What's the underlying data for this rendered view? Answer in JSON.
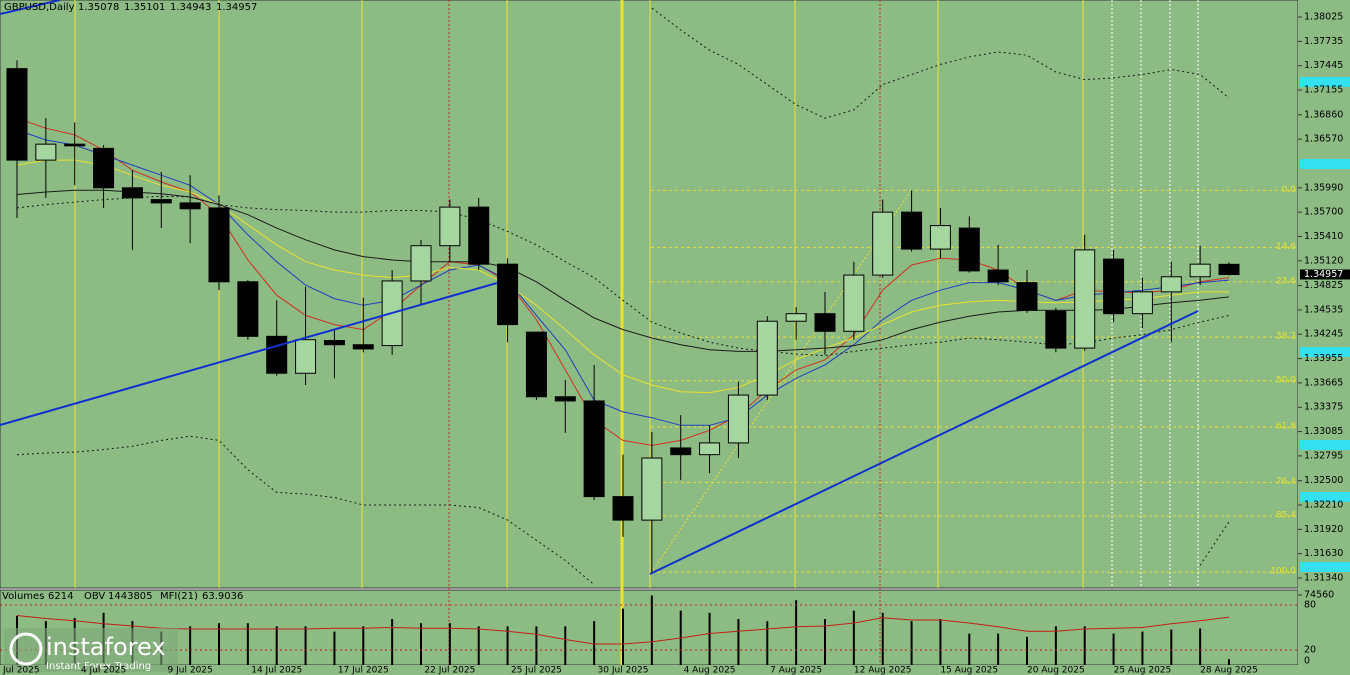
{
  "chart_data": {
    "type": "candlestick",
    "title": "GBPUSD,Daily",
    "categories": [
      "1 Jul 2025",
      null,
      null,
      "4 Jul 2025",
      null,
      null,
      "9 Jul 2025",
      null,
      null,
      "14 Jul 2025",
      null,
      null,
      "17 Jul 2025",
      null,
      null,
      "22 Jul 2025",
      null,
      null,
      "25 Jul 2025",
      null,
      null,
      "30 Jul 2025",
      null,
      null,
      "4 Aug 2025",
      null,
      null,
      "7 Aug 2025",
      null,
      null,
      "12 Aug 2025",
      null,
      null,
      "15 Aug 2025",
      null,
      null,
      "20 Aug 2025",
      null,
      null,
      "25 Aug 2025",
      null,
      null,
      "28 Aug 2025"
    ],
    "open": [
      1.3741,
      1.3632,
      1.3651,
      1.3646,
      1.3599,
      1.3585,
      1.3581,
      1.3575,
      1.3487,
      1.3422,
      1.3378,
      1.3417,
      1.3412,
      1.3411,
      1.3488,
      1.353,
      1.3576,
      1.3508,
      1.3427,
      1.335,
      1.3345,
      1.3231,
      1.3203,
      1.3289,
      1.3281,
      1.3295,
      1.3352,
      1.344,
      1.3449,
      1.3428,
      1.3495,
      1.357,
      1.3526,
      1.3551,
      1.3501,
      1.3486,
      1.3452,
      1.3408,
      1.3514,
      1.3449,
      1.3475,
      1.3493,
      1.35078
    ],
    "high": [
      1.3751,
      1.3682,
      1.3677,
      1.365,
      1.362,
      1.3618,
      1.3614,
      1.359,
      1.3489,
      1.3465,
      1.3481,
      1.343,
      1.3468,
      1.3501,
      1.3537,
      1.3585,
      1.3587,
      1.3515,
      1.3427,
      1.337,
      1.3388,
      1.3281,
      1.3308,
      1.3328,
      1.3316,
      1.3368,
      1.3446,
      1.3457,
      1.3475,
      1.3511,
      1.3585,
      1.3596,
      1.3575,
      1.3565,
      1.3531,
      1.3501,
      1.3456,
      1.3543,
      1.3525,
      1.3492,
      1.3511,
      1.353,
      1.35101
    ],
    "low": [
      1.3563,
      1.3587,
      1.3602,
      1.3575,
      1.3525,
      1.3551,
      1.3533,
      1.3477,
      1.3418,
      1.3375,
      1.3364,
      1.3372,
      1.3403,
      1.34,
      1.3459,
      1.3511,
      1.3501,
      1.3415,
      1.3346,
      1.3307,
      1.3227,
      1.3183,
      1.314,
      1.3251,
      1.3259,
      1.3277,
      1.3346,
      1.3418,
      1.34,
      1.3418,
      1.3492,
      1.3523,
      1.3515,
      1.3498,
      1.3483,
      1.345,
      1.3403,
      1.3405,
      1.3439,
      1.3432,
      1.3415,
      1.3483,
      1.34943
    ],
    "close": [
      1.3632,
      1.3651,
      1.3649,
      1.3599,
      1.3587,
      1.3581,
      1.3574,
      1.3487,
      1.3422,
      1.3378,
      1.3418,
      1.3412,
      1.3407,
      1.3488,
      1.353,
      1.3576,
      1.3508,
      1.3436,
      1.335,
      1.3345,
      1.3231,
      1.3203,
      1.3277,
      1.3281,
      1.3295,
      1.3352,
      1.344,
      1.3449,
      1.3428,
      1.3495,
      1.357,
      1.3526,
      1.3554,
      1.35,
      1.3487,
      1.3453,
      1.3408,
      1.3525,
      1.3449,
      1.3475,
      1.3493,
      1.3508,
      1.34957
    ],
    "overlays": [
      {
        "color": "#d03020",
        "dashed": false,
        "values": [
          1.3682,
          1.367,
          1.3662,
          1.3644,
          1.362,
          1.3606,
          1.3594,
          1.3567,
          1.3513,
          1.3471,
          1.3447,
          1.3436,
          1.343,
          1.3453,
          1.3483,
          1.3511,
          1.3507,
          1.3487,
          1.3442,
          1.3382,
          1.3322,
          1.3298,
          1.3292,
          1.3298,
          1.331,
          1.3328,
          1.3358,
          1.3382,
          1.3394,
          1.3424,
          1.3477,
          1.3507,
          1.3515,
          1.3513,
          1.3501,
          1.3477,
          1.3465,
          1.3477,
          1.3475,
          1.3474,
          1.3477,
          1.3487,
          1.3492
        ]
      },
      {
        "color": "#2040c0",
        "dashed": false,
        "values": [
          1.3668,
          1.3656,
          1.365,
          1.3638,
          1.3626,
          1.3614,
          1.3602,
          1.3579,
          1.3543,
          1.3511,
          1.3483,
          1.3467,
          1.3459,
          1.3465,
          1.3483,
          1.3501,
          1.3507,
          1.3489,
          1.3447,
          1.3406,
          1.3346,
          1.3332,
          1.3325,
          1.3316,
          1.3316,
          1.3325,
          1.3352,
          1.3372,
          1.3388,
          1.3412,
          1.3442,
          1.3465,
          1.3477,
          1.3486,
          1.3486,
          1.3477,
          1.3465,
          1.3471,
          1.3474,
          1.3477,
          1.3481,
          1.3486,
          1.3489
        ]
      },
      {
        "color": "#e8e030",
        "dashed": false,
        "values": [
          1.3626,
          1.3632,
          1.3632,
          1.3626,
          1.3614,
          1.3602,
          1.3594,
          1.3579,
          1.3555,
          1.3531,
          1.3511,
          1.3501,
          1.3495,
          1.3492,
          1.3495,
          1.3504,
          1.3501,
          1.3483,
          1.3459,
          1.343,
          1.34,
          1.3376,
          1.3364,
          1.3356,
          1.3355,
          1.3361,
          1.3376,
          1.3394,
          1.3408,
          1.342,
          1.3436,
          1.3451,
          1.3459,
          1.3463,
          1.3465,
          1.3463,
          1.3462,
          1.3463,
          1.3465,
          1.3467,
          1.3471,
          1.3475,
          1.3475
        ]
      },
      {
        "color": "#1a1a1a",
        "dashed": false,
        "values": [
          1.3591,
          1.3594,
          1.3596,
          1.3596,
          1.3594,
          1.3592,
          1.3588,
          1.3579,
          1.3567,
          1.3551,
          1.3537,
          1.3525,
          1.3517,
          1.3513,
          1.3511,
          1.3511,
          1.3511,
          1.3504,
          1.3487,
          1.3465,
          1.3444,
          1.343,
          1.342,
          1.3412,
          1.3406,
          1.3404,
          1.3404,
          1.3406,
          1.3408,
          1.3411,
          1.3418,
          1.343,
          1.3439,
          1.3446,
          1.3451,
          1.3453,
          1.3453,
          1.3453,
          1.3454,
          1.3458,
          1.3462,
          1.3465,
          1.3469
        ]
      },
      {
        "color": "#1a1a1a",
        "dashed": true,
        "values": [
          1.3575,
          1.3579,
          1.3582,
          1.3585,
          1.3587,
          1.3589,
          1.3588,
          1.3579,
          1.3575,
          1.3573,
          1.3572,
          1.357,
          1.357,
          1.3572,
          1.3572,
          1.357,
          1.3561,
          1.3547,
          1.3531,
          1.3511,
          1.3492,
          1.3465,
          1.3439,
          1.3426,
          1.3415,
          1.3408,
          1.3404,
          1.3401,
          1.3399,
          1.3404,
          1.3408,
          1.3412,
          1.3415,
          1.342,
          1.3418,
          1.3415,
          1.3412,
          1.3414,
          1.342,
          1.3424,
          1.343,
          1.3439,
          1.3447
        ]
      },
      {
        "color": "#1a1a1a",
        "dashed": true,
        "values": [
          null,
          null,
          null,
          null,
          null,
          null,
          null,
          null,
          null,
          null,
          null,
          null,
          null,
          null,
          null,
          null,
          null,
          null,
          null,
          null,
          null,
          null,
          1.3813,
          1.3787,
          1.3763,
          1.3746,
          1.3722,
          1.3698,
          1.3682,
          1.3692,
          1.3722,
          1.3734,
          1.3746,
          1.3755,
          1.3761,
          1.3757,
          1.3737,
          1.3728,
          1.373,
          1.3734,
          1.374,
          1.3734,
          1.3706
        ]
      },
      {
        "color": "#1a1a1a",
        "dashed": true,
        "values": [
          1.3281,
          1.3283,
          1.3284,
          1.3287,
          1.3291,
          1.3298,
          1.3303,
          1.3298,
          1.3263,
          1.3236,
          1.3234,
          1.323,
          1.3221,
          1.3221,
          1.3221,
          1.3221,
          1.3218,
          1.3203,
          1.3179,
          1.3155,
          1.3126,
          null,
          null,
          null,
          null,
          null,
          null,
          null,
          null,
          null,
          null,
          null,
          null,
          null,
          null,
          null,
          null,
          null,
          null,
          null,
          null,
          1.3149,
          1.3201
        ]
      }
    ],
    "ylim": [
      1.31221,
      1.38228
    ],
    "yticks": [
      1.38025,
      1.37735,
      1.37445,
      1.37155,
      {
        "value": 1.3686,
        "label": "1.36860"
      },
      {
        "value": 1.3657,
        "label": "1.36570"
      },
      {
        "value": 1.3599,
        "label": "1.35990"
      },
      {
        "value": 1.357,
        "label": "1.35700"
      },
      {
        "value": 1.3541,
        "label": "1.35410"
      },
      {
        "value": 1.3512,
        "label": "1.35120"
      },
      1.34825,
      1.34535,
      1.34245,
      1.33955,
      1.33665,
      1.33375,
      1.33085,
      1.32795,
      {
        "value": 1.325,
        "label": "1.32500"
      },
      {
        "value": 1.3221,
        "label": "1.32210"
      },
      {
        "value": 1.3192,
        "label": "1.31920"
      },
      {
        "value": 1.3163,
        "label": "1.31630"
      },
      {
        "value": 1.3134,
        "label": "1.31340"
      }
    ],
    "fib_levels": [
      "0.0",
      "14.6",
      "23.6",
      "38.2",
      "50.0",
      "61.8",
      "76.4",
      "85.4",
      "100.0"
    ],
    "fib_prices": [
      1.3596,
      1.3528,
      1.3487,
      1.3421,
      1.3369,
      1.3314,
      1.3248,
      1.3208,
      1.3141
    ],
    "fib_color": "#e8e030",
    "volume_label": "Volumes",
    "volumes": [
      52300,
      46700,
      50100,
      55600,
      46700,
      35600,
      41200,
      44500,
      44500,
      41200,
      41200,
      35600,
      41200,
      49000,
      44500,
      44500,
      41200,
      41200,
      41200,
      41200,
      46700,
      60100,
      74000,
      57900,
      55600,
      49000,
      46700,
      69000,
      49000,
      57900,
      55600,
      46700,
      49000,
      33400,
      33400,
      30000,
      41200,
      41200,
      33400,
      35600,
      37800,
      39000,
      6214
    ],
    "volume_ylim": [
      0,
      74560
    ],
    "volume_yticks": [
      74560
    ],
    "obv_label": "OBV",
    "obv_value": 1443805,
    "mfi_label": "MFI(21)",
    "mfi": [
      66,
      62,
      59,
      55,
      52,
      49,
      48,
      48,
      48,
      48,
      48,
      49,
      49,
      50,
      49,
      49,
      48,
      45,
      41,
      34,
      28,
      28,
      31,
      36,
      42,
      45,
      48,
      51,
      52,
      56,
      63,
      60,
      60,
      56,
      51,
      45,
      45,
      48,
      49,
      50,
      55,
      59,
      63.9036
    ],
    "mfi_color": "#c02018",
    "mfi_ylim": [
      0,
      100
    ],
    "mfi_yticks": [
      80,
      20,
      0
    ]
  },
  "logo": {
    "name": "instaforex",
    "tagline": "Instant Forex Trading"
  }
}
